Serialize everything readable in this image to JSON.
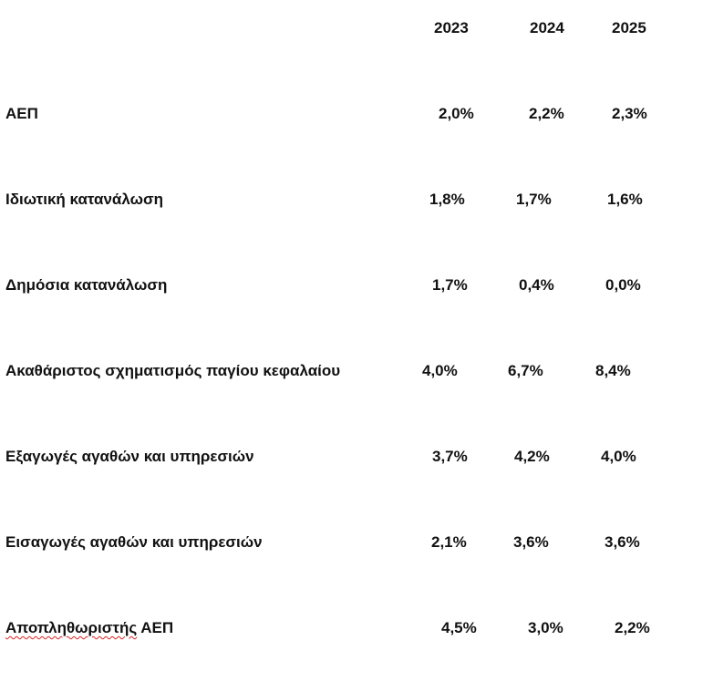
{
  "table": {
    "years": [
      "2023",
      "2024",
      "2025"
    ],
    "rows": [
      {
        "label": "ΑΕΠ",
        "values": [
          "2,0%",
          "2,2%",
          "2,3%"
        ]
      },
      {
        "label": "Ιδιωτική κατανάλωση",
        "values": [
          "1,8%",
          "1,7%",
          "1,6%"
        ]
      },
      {
        "label": "Δημόσια κατανάλωση",
        "values": [
          "1,7%",
          "0,4%",
          "0,0%"
        ]
      },
      {
        "label": "Ακαθάριστος σχηματισμός παγίου κεφαλαίου",
        "values": [
          "4,0%",
          "6,7%",
          "8,4%"
        ]
      },
      {
        "label": "Εξαγωγές αγαθών και υπηρεσιών",
        "values": [
          "3,7%",
          "4,2%",
          "4,0%"
        ]
      },
      {
        "label": "Εισαγωγές αγαθών και υπηρεσιών",
        "values": [
          "2,1%",
          "3,6%",
          "3,6%"
        ]
      },
      {
        "label_word": "Αποπληθωριστής",
        "label_rest": " ΑΕΠ",
        "values": [
          "4,5%",
          "3,0%",
          "2,2%"
        ]
      }
    ]
  }
}
